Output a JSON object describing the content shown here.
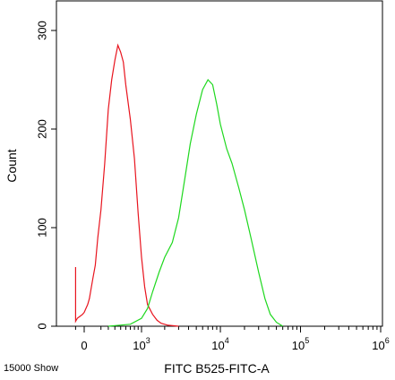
{
  "chart_data": {
    "type": "line",
    "xlabel": "FITC B525-FITC-A",
    "ylabel": "Count",
    "footer": "15000 Show",
    "x_scale": "biexponential (linear near 0, log above ~10^2)",
    "ylim": [
      0,
      330
    ],
    "y_ticks": [
      {
        "value": 0,
        "label": "0"
      },
      {
        "value": 100,
        "label": "100"
      },
      {
        "value": 200,
        "label": "200"
      },
      {
        "value": 300,
        "label": "300"
      }
    ],
    "x_ticks": [
      {
        "value": 0,
        "base": "0",
        "exp": ""
      },
      {
        "value": 1000,
        "base": "10",
        "exp": "3"
      },
      {
        "value": 10000,
        "base": "10",
        "exp": "4"
      },
      {
        "value": 100000,
        "base": "10",
        "exp": "5"
      },
      {
        "value": 1000000,
        "base": "10",
        "exp": "6"
      }
    ],
    "grid": false,
    "series": [
      {
        "color": "#e8141e",
        "points": [
          [
            -100,
            60
          ],
          [
            -100,
            5
          ],
          [
            -80,
            8
          ],
          [
            -50,
            10
          ],
          [
            -20,
            12
          ],
          [
            0,
            14
          ],
          [
            20,
            18
          ],
          [
            40,
            22
          ],
          [
            60,
            28
          ],
          [
            80,
            38
          ],
          [
            100,
            48
          ],
          [
            130,
            62
          ],
          [
            160,
            90
          ],
          [
            200,
            118
          ],
          [
            250,
            165
          ],
          [
            300,
            220
          ],
          [
            350,
            250
          ],
          [
            400,
            270
          ],
          [
            450,
            285
          ],
          [
            500,
            278
          ],
          [
            550,
            268
          ],
          [
            600,
            245
          ],
          [
            700,
            210
          ],
          [
            800,
            170
          ],
          [
            900,
            115
          ],
          [
            1000,
            70
          ],
          [
            1100,
            40
          ],
          [
            1200,
            22
          ],
          [
            1400,
            12
          ],
          [
            1600,
            6
          ],
          [
            1800,
            3
          ],
          [
            2200,
            1
          ],
          [
            3000,
            0
          ]
        ]
      },
      {
        "color": "#1ed81e",
        "points": [
          [
            300,
            0
          ],
          [
            700,
            2
          ],
          [
            1000,
            8
          ],
          [
            1200,
            18
          ],
          [
            1400,
            35
          ],
          [
            1700,
            55
          ],
          [
            2000,
            70
          ],
          [
            2500,
            85
          ],
          [
            3000,
            110
          ],
          [
            3600,
            150
          ],
          [
            4200,
            185
          ],
          [
            5000,
            215
          ],
          [
            6000,
            240
          ],
          [
            7000,
            250
          ],
          [
            8000,
            245
          ],
          [
            9000,
            225
          ],
          [
            10000,
            205
          ],
          [
            12000,
            180
          ],
          [
            14000,
            165
          ],
          [
            17000,
            140
          ],
          [
            20000,
            118
          ],
          [
            24000,
            90
          ],
          [
            30000,
            55
          ],
          [
            36000,
            28
          ],
          [
            42000,
            12
          ],
          [
            50000,
            4
          ],
          [
            60000,
            0
          ]
        ]
      }
    ]
  }
}
